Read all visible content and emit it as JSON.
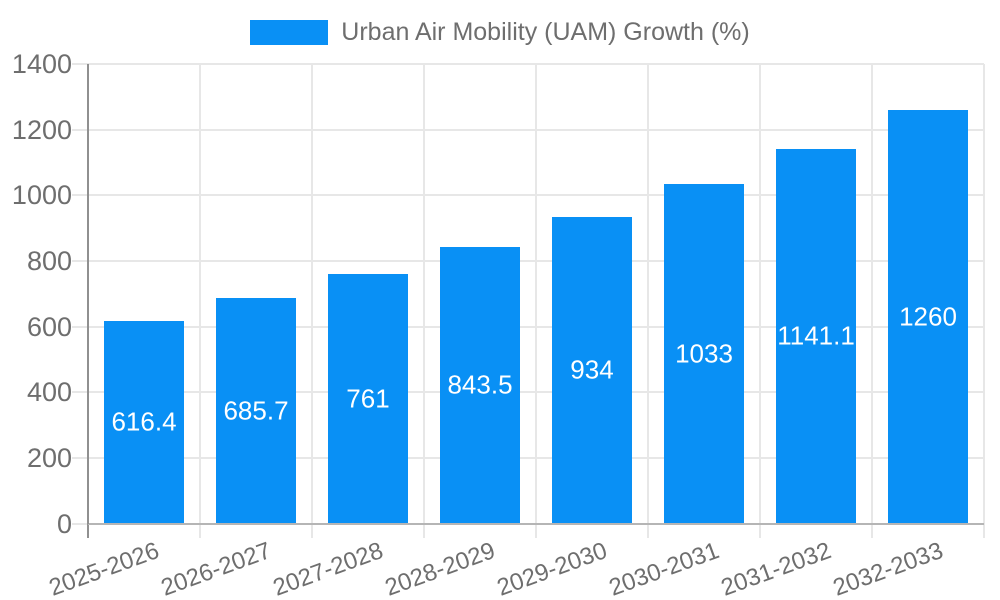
{
  "chart_data": {
    "type": "bar",
    "title": "",
    "legend": "Urban Air Mobility (UAM) Growth (%)",
    "legend_position": "top",
    "categories": [
      "2025-2026",
      "2026-2027",
      "2027-2028",
      "2028-2029",
      "2029-2030",
      "2030-2031",
      "2031-2032",
      "2032-2033"
    ],
    "series": [
      {
        "name": "Urban Air Mobility (UAM) Growth (%)",
        "values": [
          616.4,
          685.7,
          761,
          843.5,
          934,
          1033,
          1141.1,
          1260
        ]
      }
    ],
    "value_labels": [
      "616.4",
      "685.7",
      "761",
      "843.5",
      "934",
      "1033",
      "1141.1",
      "1260"
    ],
    "ylim": [
      0,
      1400
    ],
    "ytick_step": 200,
    "yticks": [
      "0",
      "200",
      "400",
      "600",
      "800",
      "1000",
      "1200",
      "1400"
    ],
    "grid": "both",
    "colors": {
      "bar": "#0990f5",
      "bar_value_text": "#ffffff",
      "axis_text": "#6e6e6e",
      "gridline": "#e7e7e7",
      "baseline": "#b5b5b5",
      "axis_line": "#909090",
      "background": "#ffffff"
    }
  }
}
